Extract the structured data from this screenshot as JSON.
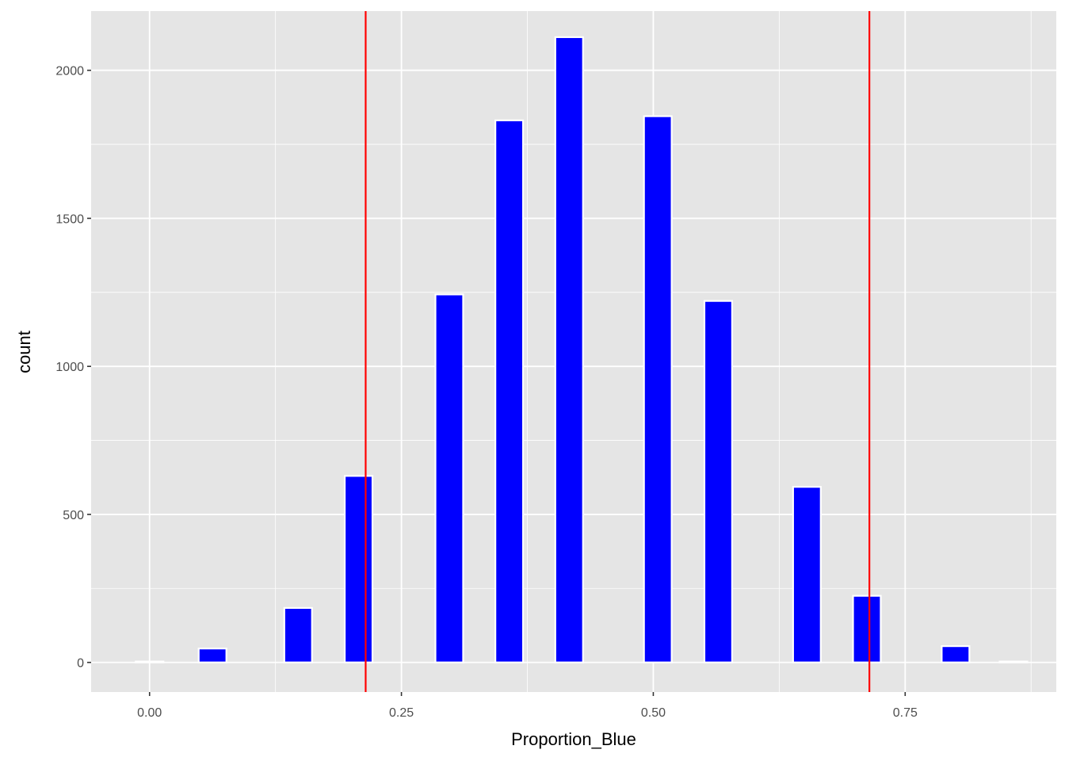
{
  "chart_data": {
    "type": "bar",
    "xlabel": "Proportion_Blue",
    "ylabel": "count",
    "xlim": [
      -0.058,
      0.9
    ],
    "ylim": [
      -100,
      2200
    ],
    "x_ticks": [
      0.0,
      0.25,
      0.5,
      0.75
    ],
    "x_tick_labels": [
      "0.00",
      "0.25",
      "0.50",
      "0.75"
    ],
    "y_ticks": [
      0,
      500,
      1000,
      1500,
      2000
    ],
    "y_tick_labels": [
      "0",
      "500",
      "1000",
      "1500",
      "2000"
    ],
    "bar_width": 0.0275,
    "x": [
      0.0,
      0.0625,
      0.1475,
      0.2075,
      0.2975,
      0.357,
      0.4165,
      0.5045,
      0.5645,
      0.6525,
      0.712,
      0.8,
      0.8575
    ],
    "values": [
      3,
      47,
      184,
      630,
      1243,
      1831,
      2112,
      1845,
      1221,
      593,
      225,
      55,
      3
    ],
    "vlines": [
      0.2145,
      0.7145
    ],
    "colors": {
      "panel": "#e5e5e5",
      "grid_major": "#ffffff",
      "bar_fill": "#0000ff",
      "bar_outline": "#ffffff",
      "vline": "#ff0000",
      "tick_text": "#4d4d4d"
    },
    "grid": true,
    "legend": "none"
  }
}
